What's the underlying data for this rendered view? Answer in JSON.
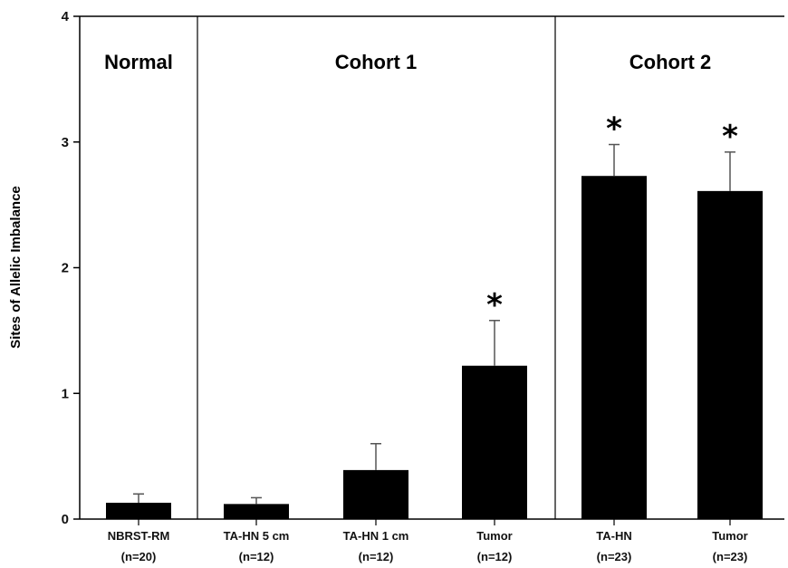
{
  "chart_data": {
    "type": "bar",
    "ylabel": "Sites of Allelic Imbalance",
    "xlabel": "",
    "ylim": [
      0,
      4
    ],
    "yticks": [
      0,
      1,
      2,
      3,
      4
    ],
    "grid": false,
    "colors": {
      "bar": "#000000",
      "axis": "#000000",
      "error": "#555555"
    },
    "sections": [
      {
        "label": "Normal",
        "categories": [
          0
        ]
      },
      {
        "label": "Cohort 1",
        "categories": [
          1,
          2,
          3
        ]
      },
      {
        "label": "Cohort 2",
        "categories": [
          4,
          5
        ]
      }
    ],
    "categories": [
      {
        "name": "NBRST-RM",
        "n": "(n=20)",
        "value": 0.13,
        "error": 0.07,
        "significant": false
      },
      {
        "name": "TA-HN 5 cm",
        "n": "(n=12)",
        "value": 0.12,
        "error": 0.05,
        "significant": false
      },
      {
        "name": "TA-HN 1 cm",
        "n": "(n=12)",
        "value": 0.39,
        "error": 0.21,
        "significant": false
      },
      {
        "name": "Tumor",
        "n": "(n=12)",
        "value": 1.22,
        "error": 0.36,
        "significant": true
      },
      {
        "name": "TA-HN",
        "n": "(n=23)",
        "value": 2.73,
        "error": 0.25,
        "significant": true
      },
      {
        "name": "Tumor",
        "n": "(n=23)",
        "value": 2.61,
        "error": 0.31,
        "significant": true
      }
    ],
    "significance_marker": "*"
  }
}
